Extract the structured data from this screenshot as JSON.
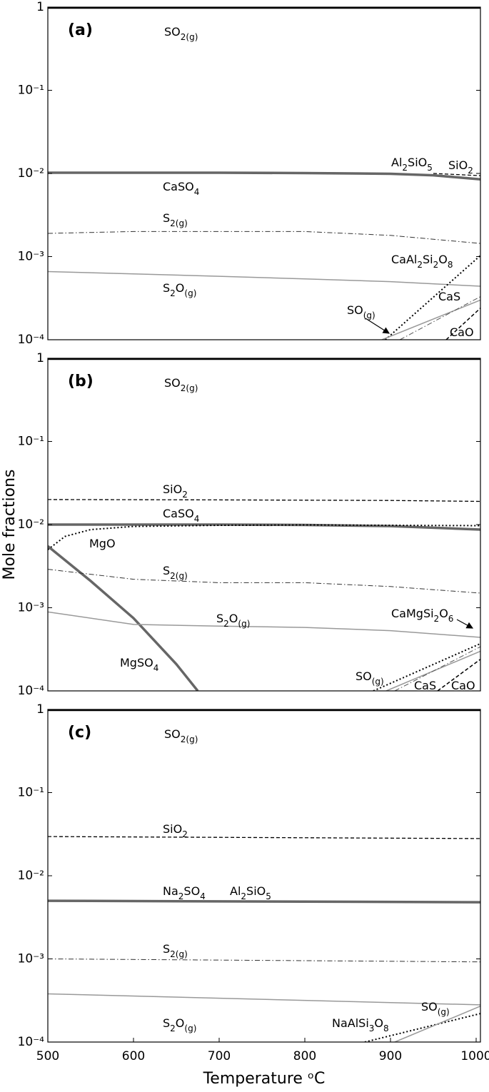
{
  "chart_data": [
    {
      "type": "line",
      "panel_label": "(a)",
      "yscale": "log",
      "xlim": [
        500,
        1005
      ],
      "ylim": [
        0.0001,
        1
      ],
      "yticks": [
        {
          "value": 0.0001,
          "label": "10⁻⁴"
        },
        {
          "value": 0.001,
          "label": "10⁻³"
        },
        {
          "value": 0.01,
          "label": "10⁻²"
        },
        {
          "value": 0.1,
          "label": "10⁻¹"
        },
        1
      ],
      "annotations": [
        "SO2(g)",
        "Al2SiO5",
        "SiO2",
        "CaSO4",
        "S2(g)",
        "CaAl2Si2O8",
        "S2O(g)",
        "CaS",
        "SO(g)",
        "CaO"
      ],
      "series": [
        {
          "color": "#000000",
          "style": "solid",
          "linewidth": 2.5,
          "x": [
            500,
            1005
          ],
          "values": [
            0.98,
            0.98
          ]
        },
        {
          "color": "#666666",
          "style": "solid",
          "linewidth": 3.5,
          "x": [
            500,
            600,
            700,
            800,
            900,
            950,
            1005
          ],
          "values": [
            0.0102,
            0.0102,
            0.0102,
            0.0101,
            0.0099,
            0.0095,
            0.0085
          ]
        },
        {
          "color": "#000000",
          "style": "dashed",
          "linewidth": 1.3,
          "x": [
            950,
            1005
          ],
          "values": [
            0.01,
            0.0094
          ]
        },
        {
          "color": "#333333",
          "style": "dashdot",
          "linewidth": 1,
          "x": [
            500,
            600,
            700,
            800,
            900,
            1005
          ],
          "values": [
            0.0019,
            0.002,
            0.002,
            0.002,
            0.0018,
            0.00144
          ]
        },
        {
          "color": "#999999",
          "style": "solid",
          "linewidth": 1.5,
          "x": [
            500,
            600,
            700,
            800,
            900,
            1005
          ],
          "values": [
            0.00066,
            0.00062,
            0.00058,
            0.00054,
            0.0005,
            0.00044
          ]
        },
        {
          "color": "#000000",
          "style": "dotted",
          "linewidth": 2,
          "x": [
            894,
            1005
          ],
          "values": [
            0.0001,
            0.00103
          ]
        },
        {
          "color": "#999999",
          "style": "solid",
          "linewidth": 1.5,
          "x": [
            890,
            1005
          ],
          "values": [
            0.0001,
            0.0003
          ]
        },
        {
          "color": "#555555",
          "style": "dashdot",
          "linewidth": 1,
          "x": [
            911,
            1005
          ],
          "values": [
            0.0001,
            0.00033
          ]
        },
        {
          "color": "#000000",
          "style": "dashed",
          "linewidth": 1.5,
          "x": [
            965,
            1005
          ],
          "values": [
            0.0001,
            0.00024
          ]
        }
      ]
    },
    {
      "type": "line",
      "panel_label": "(b)",
      "yscale": "log",
      "xlim": [
        500,
        1005
      ],
      "ylim": [
        0.0001,
        1
      ],
      "ylabel": "Mole fractions",
      "yticks": [
        {
          "value": 0.0001,
          "label": "10⁻⁴"
        },
        {
          "value": 0.001,
          "label": "10⁻³"
        },
        {
          "value": 0.01,
          "label": "10⁻²"
        },
        {
          "value": 0.1,
          "label": "10⁻¹"
        },
        1
      ],
      "annotations": [
        "SO2(g)",
        "SiO2",
        "CaSO4",
        "MgO",
        "S2(g)",
        "CaMgSi2O6",
        "S2O(g)",
        "MgSO4",
        "SO(g)",
        "CaS",
        "CaO"
      ],
      "series": [
        {
          "color": "#000000",
          "style": "solid",
          "linewidth": 2.5,
          "x": [
            500,
            1005
          ],
          "values": [
            0.98,
            0.98
          ]
        },
        {
          "color": "#000000",
          "style": "dashed",
          "linewidth": 1.3,
          "x": [
            500,
            700,
            900,
            1005
          ],
          "values": [
            0.02,
            0.0198,
            0.0195,
            0.019
          ]
        },
        {
          "color": "#666666",
          "style": "solid",
          "linewidth": 3.5,
          "x": [
            500,
            600,
            700,
            800,
            900,
            1005
          ],
          "values": [
            0.01,
            0.01,
            0.01,
            0.0099,
            0.0096,
            0.0087
          ]
        },
        {
          "color": "#000000",
          "style": "dotted",
          "linewidth": 2,
          "x": [
            500,
            520,
            550,
            600,
            700,
            800,
            900,
            1005
          ],
          "values": [
            0.005,
            0.0072,
            0.0087,
            0.0095,
            0.0098,
            0.0099,
            0.0098,
            0.0097
          ]
        },
        {
          "color": "#666666",
          "style": "solid",
          "linewidth": 3.5,
          "x": [
            500,
            550,
            600,
            650,
            675
          ],
          "values": [
            0.0055,
            0.0021,
            0.00075,
            0.00021,
            0.0001
          ]
        },
        {
          "color": "#333333",
          "style": "dashdot",
          "linewidth": 1,
          "x": [
            500,
            600,
            700,
            800,
            900,
            1005
          ],
          "values": [
            0.0029,
            0.0022,
            0.002,
            0.002,
            0.0018,
            0.0015
          ]
        },
        {
          "color": "#999999",
          "style": "solid",
          "linewidth": 1.5,
          "x": [
            500,
            600,
            700,
            800,
            900,
            1005
          ],
          "values": [
            0.00089,
            0.00063,
            0.0006,
            0.00058,
            0.00053,
            0.00044
          ]
        },
        {
          "color": "#000000",
          "style": "dotted",
          "linewidth": 2,
          "x": [
            880,
            1005
          ],
          "values": [
            0.0001,
            0.00037
          ]
        },
        {
          "color": "#999999",
          "style": "solid",
          "linewidth": 1.5,
          "x": [
            895,
            1005
          ],
          "values": [
            0.0001,
            0.0003
          ]
        },
        {
          "color": "#555555",
          "style": "dashdot",
          "linewidth": 1,
          "x": [
            905,
            1005
          ],
          "values": [
            0.0001,
            0.00034
          ]
        },
        {
          "color": "#000000",
          "style": "dashed",
          "linewidth": 1.5,
          "x": [
            955,
            1005
          ],
          "values": [
            0.0001,
            0.00024
          ]
        }
      ]
    },
    {
      "type": "line",
      "panel_label": "(c)",
      "yscale": "log",
      "xlim": [
        500,
        1005
      ],
      "ylim": [
        0.0001,
        1
      ],
      "xlabel": "Temperature ᵒC",
      "xticks": [
        500,
        600,
        700,
        800,
        900,
        1000
      ],
      "yticks": [
        {
          "value": 0.0001,
          "label": "10⁻⁴"
        },
        {
          "value": 0.001,
          "label": "10⁻³"
        },
        {
          "value": 0.01,
          "label": "10⁻²"
        },
        {
          "value": 0.1,
          "label": "10⁻¹"
        },
        1
      ],
      "annotations": [
        "SO2(g)",
        "SiO2",
        "Na2SO4",
        "Al2SiO5",
        "S2(g)",
        "S2O(g)",
        "NaAlSi3O8",
        "SO(g)"
      ],
      "series": [
        {
          "color": "#000000",
          "style": "solid",
          "linewidth": 2.5,
          "x": [
            500,
            1005
          ],
          "values": [
            0.98,
            0.98
          ]
        },
        {
          "color": "#000000",
          "style": "dashed",
          "linewidth": 1.3,
          "x": [
            500,
            1005
          ],
          "values": [
            0.0296,
            0.028
          ]
        },
        {
          "color": "#666666",
          "style": "solid",
          "linewidth": 3.5,
          "x": [
            500,
            1005
          ],
          "values": [
            0.005,
            0.0048
          ]
        },
        {
          "color": "#333333",
          "style": "dashdot",
          "linewidth": 1,
          "x": [
            500,
            1005
          ],
          "values": [
            0.001,
            0.00092
          ]
        },
        {
          "color": "#999999",
          "style": "solid",
          "linewidth": 1.5,
          "x": [
            500,
            1005
          ],
          "values": [
            0.00038,
            0.00028
          ]
        },
        {
          "color": "#000000",
          "style": "dotted",
          "linewidth": 2,
          "x": [
            870,
            1005
          ],
          "values": [
            0.0001,
            0.00022
          ]
        },
        {
          "color": "#999999",
          "style": "solid",
          "linewidth": 1.5,
          "x": [
            905,
            1005
          ],
          "values": [
            0.0001,
            0.00027
          ]
        }
      ]
    }
  ]
}
